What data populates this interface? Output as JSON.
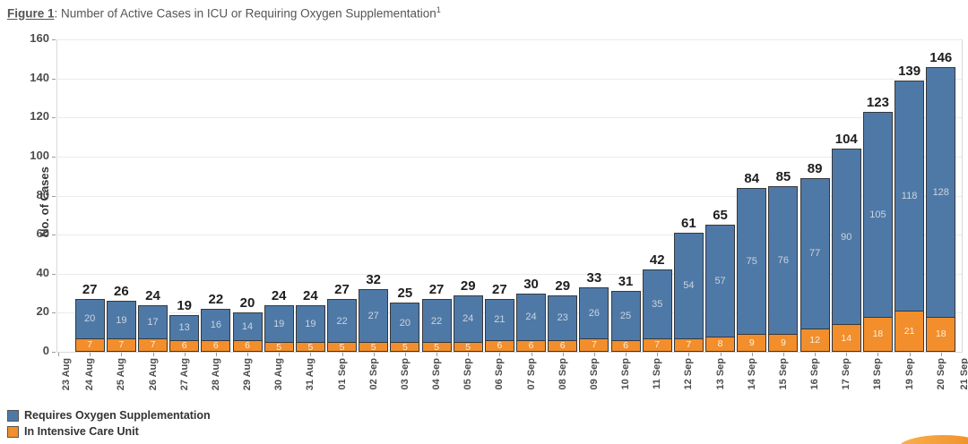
{
  "title": {
    "figure_label": "Figure 1",
    "text": ": Number of Active Cases in ICU or Requiring Oxygen Supplementation",
    "footnote_mark": "1"
  },
  "legend": {
    "items": [
      {
        "id": "oxygen",
        "label": "Requires Oxygen Supplementation",
        "color": "#4e79a7"
      },
      {
        "id": "icu",
        "label": "In Intensive Care Unit",
        "color": "#f28e2b"
      }
    ]
  },
  "corner_logo": {
    "color_outer": "#ef8b23",
    "color_inner": "#f9b04e"
  },
  "chart_data": {
    "type": "bar",
    "stacked": true,
    "title": "Figure 1: Number of Active Cases in ICU or Requiring Oxygen Supplementation",
    "ylabel": "No. of Cases",
    "xlabel": "",
    "ylim": [
      0,
      160
    ],
    "yticks": [
      0,
      20,
      40,
      60,
      80,
      100,
      120,
      140,
      160
    ],
    "grid": true,
    "legend_position": "bottom-left",
    "x_tick_labels": [
      "23 Aug",
      "24 Aug",
      "25 Aug",
      "26 Aug",
      "27 Aug",
      "28 Aug",
      "29 Aug",
      "30 Aug",
      "31 Aug",
      "01 Sep",
      "02 Sep",
      "03 Sep",
      "04 Sep",
      "05 Sep",
      "06 Sep",
      "07 Sep",
      "08 Sep",
      "09 Sep",
      "10 Sep",
      "11 Sep",
      "12 Sep",
      "13 Sep",
      "14 Sep",
      "15 Sep",
      "16 Sep",
      "17 Sep",
      "18 Sep",
      "19 Sep",
      "20 Sep",
      "21 Sep"
    ],
    "categories": [
      "24 Aug",
      "25 Aug",
      "26 Aug",
      "27 Aug",
      "28 Aug",
      "29 Aug",
      "30 Aug",
      "31 Aug",
      "01 Sep",
      "02 Sep",
      "03 Sep",
      "04 Sep",
      "05 Sep",
      "06 Sep",
      "07 Sep",
      "08 Sep",
      "09 Sep",
      "10 Sep",
      "11 Sep",
      "12 Sep",
      "13 Sep",
      "14 Sep",
      "15 Sep",
      "16 Sep",
      "17 Sep",
      "18 Sep",
      "19 Sep",
      "20 Sep"
    ],
    "series": [
      {
        "name": "Requires Oxygen Supplementation",
        "color": "#4e79a7",
        "values": [
          20,
          19,
          17,
          13,
          16,
          14,
          19,
          19,
          22,
          27,
          20,
          22,
          24,
          21,
          24,
          23,
          26,
          25,
          35,
          54,
          57,
          75,
          76,
          77,
          90,
          105,
          118,
          128
        ]
      },
      {
        "name": "In Intensive Care Unit",
        "color": "#f28e2b",
        "values": [
          7,
          7,
          7,
          6,
          6,
          6,
          5,
          5,
          5,
          5,
          5,
          5,
          5,
          6,
          6,
          6,
          7,
          6,
          7,
          7,
          8,
          9,
          9,
          12,
          14,
          18,
          21,
          18
        ]
      }
    ],
    "totals": [
      27,
      26,
      24,
      19,
      22,
      20,
      24,
      24,
      27,
      32,
      25,
      27,
      29,
      27,
      30,
      29,
      33,
      31,
      42,
      61,
      65,
      84,
      85,
      89,
      104,
      123,
      139,
      146
    ]
  }
}
